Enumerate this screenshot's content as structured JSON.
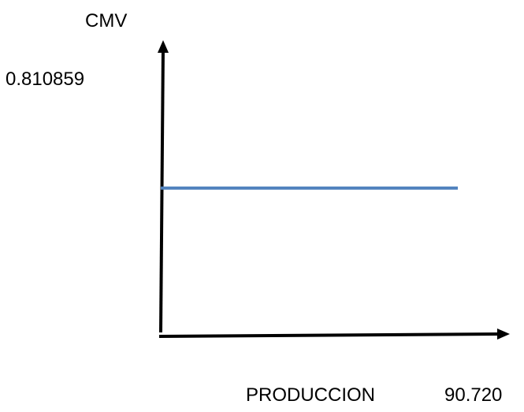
{
  "chart_data": {
    "type": "line",
    "title": "",
    "xlabel": "PRODUCCION",
    "ylabel": "CMV",
    "x_value_label": "90.720",
    "y_value_label": "0.810859",
    "series": [
      {
        "color": "#4f81bd",
        "x": [
          0,
          1
        ],
        "y": [
          0.810859,
          0.810859
        ]
      }
    ],
    "xlim": [
      0,
      1.0
    ],
    "ylim": [
      0,
      1.58
    ],
    "grid": false,
    "legend": "none"
  }
}
